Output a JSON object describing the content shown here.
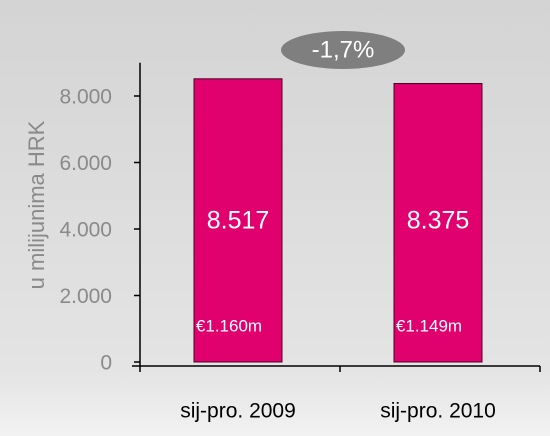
{
  "chart_data": {
    "type": "bar",
    "ylabel": "u milijunima HRK",
    "badge": "-1,7%",
    "categories": [
      "sij-pro. 2009",
      "sij-pro. 2010"
    ],
    "values": [
      8517,
      8375
    ],
    "value_labels": [
      "8.517",
      "8.375"
    ],
    "secondary_labels": [
      "€1.160m",
      "€1.149m"
    ],
    "color": "#e0006e",
    "ylim": [
      0,
      9000
    ],
    "yticks": [
      0,
      {
        "value": 2000,
        "label": "2.000"
      },
      {
        "value": 4000,
        "label": "4.000"
      },
      {
        "value": 6000,
        "label": "6.000"
      },
      {
        "value": 8000,
        "label": "8.000"
      }
    ]
  }
}
